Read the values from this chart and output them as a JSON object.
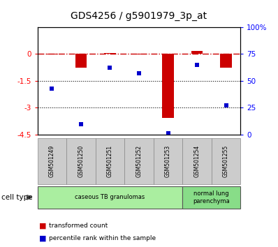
{
  "title": "GDS4256 / g5901979_3p_at",
  "samples": [
    "GSM501249",
    "GSM501250",
    "GSM501251",
    "GSM501252",
    "GSM501253",
    "GSM501254",
    "GSM501255"
  ],
  "transformed_count": [
    -0.04,
    -0.75,
    0.07,
    -0.02,
    -3.55,
    0.18,
    -0.75
  ],
  "percentile_rank": [
    43,
    10,
    62,
    57,
    1,
    65,
    27
  ],
  "ylim_left": [
    -4.5,
    1.5
  ],
  "ylim_right": [
    0,
    100
  ],
  "yticks_left": [
    0,
    -1.5,
    -3,
    -4.5
  ],
  "yticks_right": [
    0,
    25,
    50,
    75,
    100
  ],
  "ytick_labels_left": [
    "0",
    "-1.5",
    "-3",
    "-4.5"
  ],
  "ytick_labels_right": [
    "0",
    "25",
    "50",
    "75",
    "100%"
  ],
  "hline_y": 0,
  "dotted_lines": [
    -1.5,
    -3
  ],
  "bar_color": "#cc0000",
  "dot_color": "#0000cc",
  "cell_type_groups": [
    {
      "label": "caseous TB granulomas",
      "n_samples": 5,
      "color": "#aaeea0"
    },
    {
      "label": "normal lung\nparenchyma",
      "n_samples": 2,
      "color": "#88dd88"
    }
  ],
  "cell_type_label": "cell type",
  "legend_red_label": "transformed count",
  "legend_blue_label": "percentile rank within the sample",
  "bar_width": 0.4,
  "dot_marker_size": 5
}
